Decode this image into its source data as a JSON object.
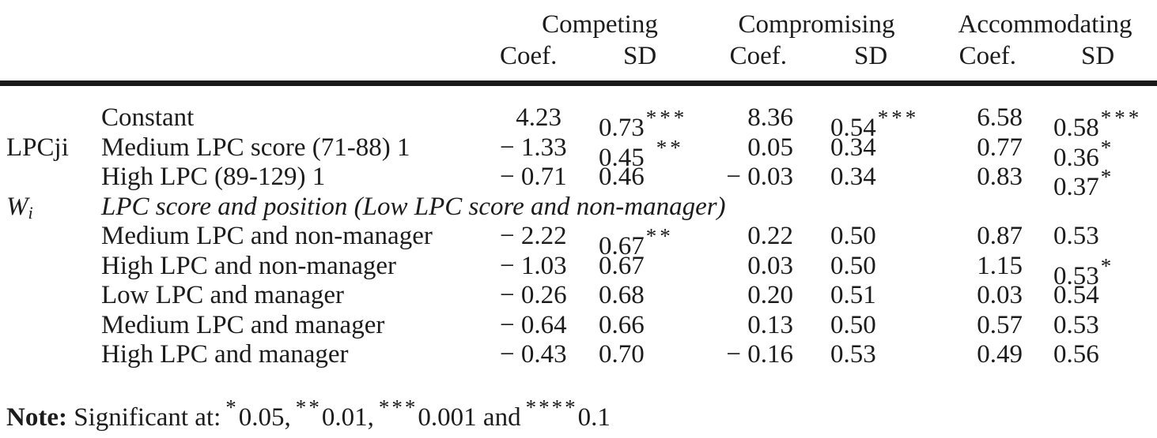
{
  "table": {
    "column_groups": [
      {
        "label": "Competing"
      },
      {
        "label": "Compromising"
      },
      {
        "label": "Accommodating"
      }
    ],
    "sub_headers": {
      "coef": "Coef.",
      "sd": "SD"
    },
    "rows": [
      {
        "group": "",
        "label": "Constant",
        "cells": [
          {
            "coef": "4.23",
            "sd": "0.73",
            "stars": "***",
            "gap": false
          },
          {
            "coef": "8.36",
            "sd": "0.54",
            "stars": "***",
            "gap": false
          },
          {
            "coef": "6.58",
            "sd": "0.58",
            "stars": "***",
            "gap": false
          }
        ]
      },
      {
        "group": "LPCji",
        "label": "Medium LPC score (71-88) 1",
        "cells": [
          {
            "coef": "− 1.33",
            "sd": "0.45",
            "stars": "**",
            "gap": true
          },
          {
            "coef": "0.05",
            "sd": "0.34",
            "stars": "",
            "gap": false
          },
          {
            "coef": "0.77",
            "sd": "0.36",
            "stars": "*",
            "gap": false
          }
        ]
      },
      {
        "group": "",
        "label": "High LPC (89-129) 1",
        "cells": [
          {
            "coef": "− 0.71",
            "sd": "0.46",
            "stars": "",
            "gap": false
          },
          {
            "coef": "− 0.03",
            "sd": "0.34",
            "stars": "",
            "gap": false
          },
          {
            "coef": "0.83",
            "sd": "0.37",
            "stars": "*",
            "gap": false
          }
        ]
      },
      {
        "group": "W",
        "group_sub": "i",
        "group_italic": true,
        "label": "LPC score and position (Low LPC score and non-manager)",
        "span": true
      },
      {
        "group": "",
        "label": "Medium LPC and non-manager",
        "cells": [
          {
            "coef": "− 2.22",
            "sd": "0.67",
            "stars": "**",
            "gap": false
          },
          {
            "coef": "0.22",
            "sd": "0.50",
            "stars": "",
            "gap": false
          },
          {
            "coef": "0.87",
            "sd": "0.53",
            "stars": "",
            "gap": false
          }
        ]
      },
      {
        "group": "",
        "label": "High LPC and non-manager",
        "cells": [
          {
            "coef": "− 1.03",
            "sd": "0.67",
            "stars": "",
            "gap": false
          },
          {
            "coef": "0.03",
            "sd": "0.50",
            "stars": "",
            "gap": false
          },
          {
            "coef": "1.15",
            "sd": "0.53",
            "stars": "*",
            "gap": false
          }
        ]
      },
      {
        "group": "",
        "label": "Low LPC and manager",
        "cells": [
          {
            "coef": "− 0.26",
            "sd": "0.68",
            "stars": "",
            "gap": false
          },
          {
            "coef": "0.20",
            "sd": "0.51",
            "stars": "",
            "gap": false
          },
          {
            "coef": "0.03",
            "sd": "0.54",
            "stars": "",
            "gap": false
          }
        ]
      },
      {
        "group": "",
        "label": "Medium LPC and manager",
        "cells": [
          {
            "coef": "− 0.64",
            "sd": "0.66",
            "stars": "",
            "gap": false
          },
          {
            "coef": "0.13",
            "sd": "0.50",
            "stars": "",
            "gap": false
          },
          {
            "coef": "0.57",
            "sd": "0.53",
            "stars": "",
            "gap": false
          }
        ]
      },
      {
        "group": "",
        "label": "High LPC and manager",
        "cells": [
          {
            "coef": "− 0.43",
            "sd": "0.70",
            "stars": "",
            "gap": false
          },
          {
            "coef": "− 0.16",
            "sd": "0.53",
            "stars": "",
            "gap": false
          },
          {
            "coef": "0.49",
            "sd": "0.56",
            "stars": "",
            "gap": false
          }
        ]
      }
    ]
  },
  "note": {
    "label": "Note:",
    "prefix": "Significant at:",
    "items": [
      {
        "stars": "*",
        "value": "0.05",
        "suffix": ","
      },
      {
        "stars": "**",
        "value": "0.01",
        "suffix": ","
      },
      {
        "stars": "***",
        "value": "0.001",
        "suffix": " and"
      },
      {
        "stars": "****",
        "value": "0.1",
        "suffix": ""
      }
    ]
  }
}
